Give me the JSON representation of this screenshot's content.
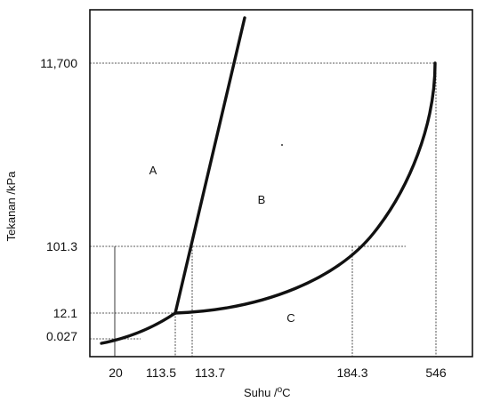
{
  "diagram": {
    "y_axis_title": "Tekanan /kPa",
    "x_axis_title_prefix": "Suhu /",
    "x_axis_title_degree": "o",
    "x_axis_title_unit": "C",
    "y_ticks": [
      "11,700",
      "101.3",
      "12.1",
      "0.027"
    ],
    "x_ticks": [
      "20",
      "113.5",
      "113.7",
      "184.3",
      "546"
    ],
    "regions": [
      "A",
      "B",
      "C"
    ]
  }
}
